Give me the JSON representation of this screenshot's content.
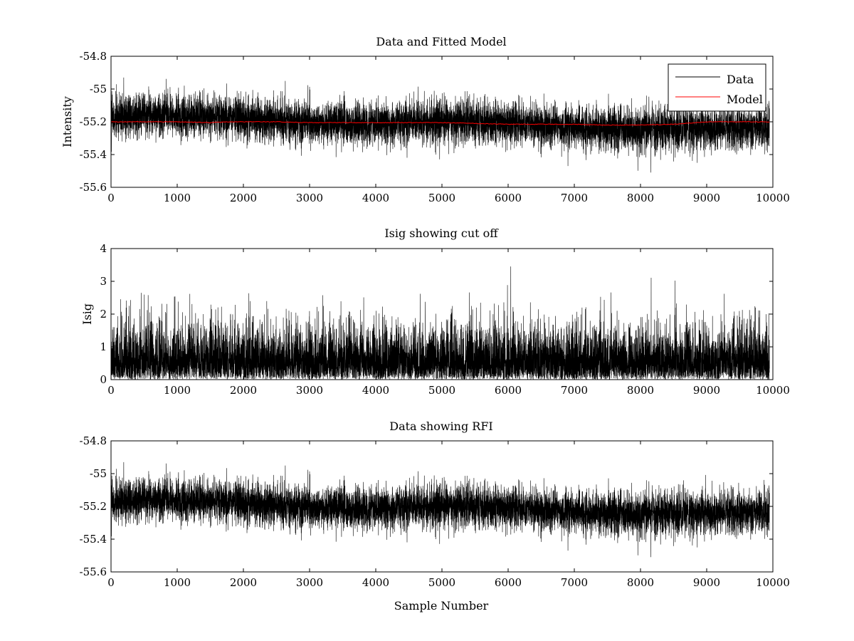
{
  "figure": {
    "background": "#ffffff",
    "colors": {
      "data": "#000000",
      "model": "#ff0000"
    }
  },
  "chart_data": [
    {
      "type": "line",
      "title": "Data and Fitted Model",
      "xlabel": "",
      "ylabel": "Intensity",
      "xlim": [
        0,
        10000
      ],
      "ylim": [
        -55.6,
        -54.8
      ],
      "x_ticks": [
        "0",
        "1000",
        "2000",
        "3000",
        "4000",
        "5000",
        "6000",
        "7000",
        "8000",
        "9000",
        "10000"
      ],
      "y_ticks": [
        "-54.8",
        "-55",
        "-55.2",
        "-55.4",
        "-55.6"
      ],
      "legend": {
        "position": "top-right",
        "entries": [
          "Data",
          "Model"
        ]
      },
      "series": [
        {
          "name": "Data",
          "color": "#000000",
          "description_stats": {
            "n": 9950,
            "mean_start": -55.17,
            "mean_end": -55.25,
            "sigma": 0.065,
            "min": -55.51,
            "max": -54.93
          }
        },
        {
          "name": "Model",
          "color": "#ff0000",
          "x": [
            0,
            500,
            1000,
            1500,
            1800,
            2000,
            2500,
            3000,
            3500,
            4000,
            4500,
            5000,
            5500,
            6000,
            6500,
            7000,
            7500,
            8000,
            8500,
            9000,
            9500,
            9950
          ],
          "y": [
            -55.2,
            -55.2,
            -55.2,
            -55.205,
            -55.2,
            -55.2,
            -55.2,
            -55.205,
            -55.205,
            -55.205,
            -55.205,
            -55.205,
            -55.21,
            -55.215,
            -55.215,
            -55.215,
            -55.22,
            -55.22,
            -55.215,
            -55.2,
            -55.2,
            -55.2
          ]
        }
      ]
    },
    {
      "type": "line",
      "title": "Isig showing cut off",
      "xlabel": "",
      "ylabel": "Isig",
      "xlim": [
        0,
        10000
      ],
      "ylim": [
        0,
        4
      ],
      "x_ticks": [
        "0",
        "1000",
        "2000",
        "3000",
        "4000",
        "5000",
        "6000",
        "7000",
        "8000",
        "9000",
        "10000"
      ],
      "y_ticks": [
        "4",
        "3",
        "2",
        "1",
        "0"
      ],
      "series": [
        {
          "color": "#000000",
          "description_stats": {
            "n": 9950,
            "min": 0,
            "max": 3.5,
            "typical": 0.8
          }
        }
      ]
    },
    {
      "type": "line",
      "title": "Data showing RFI",
      "xlabel": "Sample Number",
      "ylabel": "",
      "xlim": [
        0,
        10000
      ],
      "ylim": [
        -55.6,
        -54.8
      ],
      "x_ticks": [
        "0",
        "1000",
        "2000",
        "3000",
        "4000",
        "5000",
        "6000",
        "7000",
        "8000",
        "9000",
        "10000"
      ],
      "y_ticks": [
        "-54.8",
        "-55",
        "-55.2",
        "-55.4",
        "-55.6"
      ],
      "series": [
        {
          "color": "#000000",
          "description_stats": {
            "n": 9950,
            "mean_start": -55.17,
            "mean_end": -55.25,
            "sigma": 0.065,
            "min": -55.51,
            "max": -54.93
          }
        }
      ]
    }
  ]
}
